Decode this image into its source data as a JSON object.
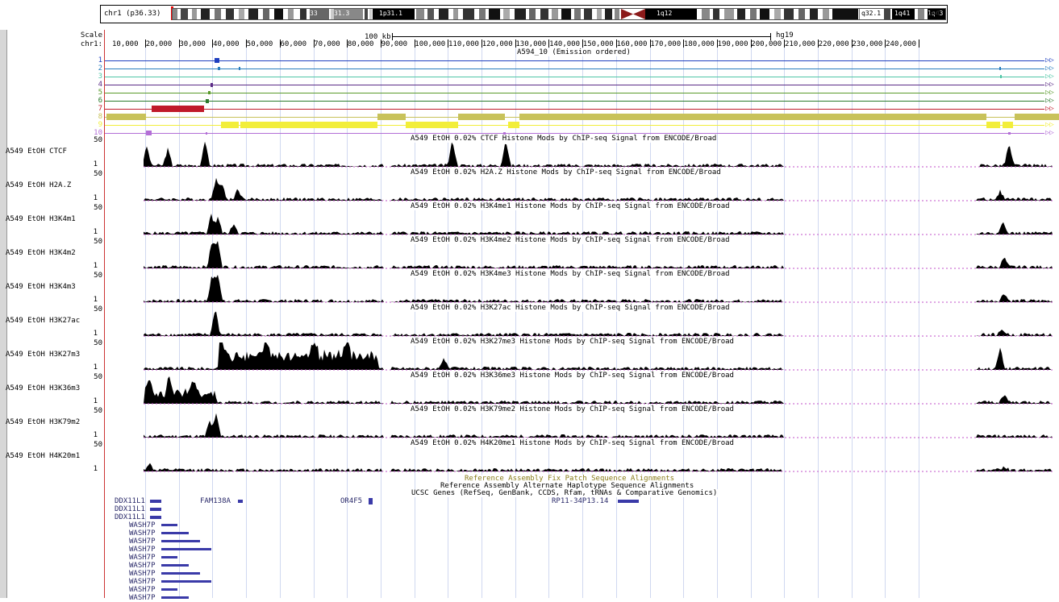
{
  "ideogram": {
    "chrom_label": "chr1 (p36.33)",
    "bands": [
      "33",
      "31.3",
      "1p31.1",
      "1q12",
      "q32.1",
      "1q41",
      "1q43",
      "q44"
    ]
  },
  "scale": {
    "label": "Scale",
    "value": "100 kb",
    "assembly": "hg19",
    "chrom": "chr1:"
  },
  "ruler_ticks": [
    "10,000",
    "20,000",
    "30,000",
    "40,000",
    "50,000",
    "60,000",
    "70,000",
    "80,000",
    "90,000",
    "100,000",
    "110,000",
    "120,000",
    "130,000",
    "140,000",
    "150,000",
    "160,000",
    "170,000",
    "180,000",
    "190,000",
    "200,000",
    "210,000",
    "220,000",
    "230,000",
    "240,000"
  ],
  "chromhmm": {
    "title": "A594_10 (Emission ordered)",
    "states": [
      "1",
      "2",
      "3",
      "4",
      "5",
      "6",
      "7",
      "8",
      "9",
      "10"
    ],
    "colors": [
      "#1f3fbf",
      "#2a7fbf",
      "#4fc6a6",
      "#5b2b86",
      "#5a9a2b",
      "#2c7a2c",
      "#c01a2a",
      "#c8c25a",
      "#f2ee3a",
      "#b36fd6"
    ]
  },
  "signal_tracks": [
    {
      "label": "A549 EtOH CTCF",
      "title": "A549 EtOH 0.02% CTCF Histone Mods by ChIP-seq Signal from ENCODE/Broad",
      "max": "50",
      "min": "1"
    },
    {
      "label": "A549 EtOH H2A.Z",
      "title": "A549 EtOH 0.02% H2A.Z Histone Mods by ChIP-seq Signal from ENCODE/Broad",
      "max": "50",
      "min": "1"
    },
    {
      "label": "A549 EtOH H3K4m1",
      "title": "A549 EtOH 0.02% H3K4me1 Histone Mods by ChIP-seq Signal from ENCODE/Broad",
      "max": "50",
      "min": "1"
    },
    {
      "label": "A549 EtOH H3K4m2",
      "title": "A549 EtOH 0.02% H3K4me2 Histone Mods by ChIP-seq Signal from ENCODE/Broad",
      "max": "50",
      "min": "1"
    },
    {
      "label": "A549 EtOH H3K4m3",
      "title": "A549 EtOH 0.02% H3K4me3 Histone Mods by ChIP-seq Signal from ENCODE/Broad",
      "max": "50",
      "min": "1"
    },
    {
      "label": "A549 EtOH H3K27ac",
      "title": "A549 EtOH 0.02% H3K27ac Histone Mods by ChIP-seq Signal from ENCODE/Broad",
      "max": "50",
      "min": "1"
    },
    {
      "label": "A549 EtOH H3K27m3",
      "title": "A549 EtOH 0.02% H3K27me3 Histone Mods by ChIP-seq Signal from ENCODE/Broad",
      "max": "50",
      "min": "1"
    },
    {
      "label": "A549 EtOH H3K36m3",
      "title": "A549 EtOH 0.02% H3K36me3 Histone Mods by ChIP-seq Signal from ENCODE/Broad",
      "max": "50",
      "min": "1"
    },
    {
      "label": "A549 EtOH H3K79m2",
      "title": "A549 EtOH 0.02% H3K79me2 Histone Mods by ChIP-seq Signal from ENCODE/Broad",
      "max": "50",
      "min": "1"
    },
    {
      "label": "A549 EtOH H4K20m1",
      "title": "A549 EtOH 0.02% H4K20me1 Histone Mods by ChIP-seq Signal from ENCODE/Broad",
      "max": "50",
      "min": "1"
    }
  ],
  "lower_titles": {
    "fix_patch": "Reference Assembly Fix Patch Sequence Alignments",
    "alt_haplo": "Reference Assembly Alternate Haplotype Sequence Alignments",
    "ucsc_genes": "UCSC Genes (RefSeq, GenBank, CCDS, Rfam, tRNAs & Comparative Genomics)"
  },
  "genes": {
    "ddx": [
      "DDX11L1",
      "DDX11L1",
      "DDX11L1"
    ],
    "wash": [
      "WASH7P",
      "WASH7P",
      "WASH7P",
      "WASH7P",
      "WASH7P",
      "WASH7P",
      "WASH7P",
      "WASH7P",
      "WASH7P",
      "WASH7P"
    ],
    "fam": "FAM138A",
    "or4f5": "OR4F5",
    "rp11": "RP11-34P13.14"
  }
}
